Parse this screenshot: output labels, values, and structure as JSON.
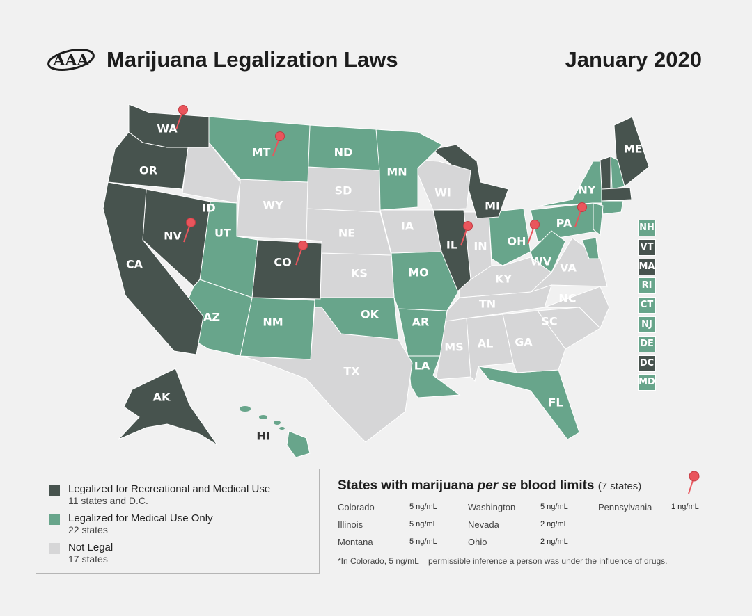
{
  "header": {
    "title": "Marijuana Legalization Laws",
    "date": "January 2020",
    "logo_text": "AAA"
  },
  "colors": {
    "recreational": "#47534e",
    "medical": "#68a58b",
    "not_legal": "#d6d6d7",
    "pin": "#e9555c",
    "background": "#f1f1f1"
  },
  "states": [
    {
      "abbr": "WA",
      "status": "recreational"
    },
    {
      "abbr": "OR",
      "status": "recreational"
    },
    {
      "abbr": "CA",
      "status": "recreational"
    },
    {
      "abbr": "NV",
      "status": "recreational"
    },
    {
      "abbr": "ID",
      "status": "not_legal"
    },
    {
      "abbr": "MT",
      "status": "medical"
    },
    {
      "abbr": "WY",
      "status": "not_legal"
    },
    {
      "abbr": "UT",
      "status": "medical"
    },
    {
      "abbr": "CO",
      "status": "recreational"
    },
    {
      "abbr": "AZ",
      "status": "medical"
    },
    {
      "abbr": "NM",
      "status": "medical"
    },
    {
      "abbr": "ND",
      "status": "medical"
    },
    {
      "abbr": "SD",
      "status": "not_legal"
    },
    {
      "abbr": "NE",
      "status": "not_legal"
    },
    {
      "abbr": "KS",
      "status": "not_legal"
    },
    {
      "abbr": "OK",
      "status": "medical"
    },
    {
      "abbr": "TX",
      "status": "not_legal"
    },
    {
      "abbr": "MN",
      "status": "medical"
    },
    {
      "abbr": "IA",
      "status": "not_legal"
    },
    {
      "abbr": "MO",
      "status": "medical"
    },
    {
      "abbr": "AR",
      "status": "medical"
    },
    {
      "abbr": "LA",
      "status": "medical"
    },
    {
      "abbr": "WI",
      "status": "not_legal"
    },
    {
      "abbr": "IL",
      "status": "recreational"
    },
    {
      "abbr": "MI",
      "status": "recreational"
    },
    {
      "abbr": "IN",
      "status": "not_legal"
    },
    {
      "abbr": "OH",
      "status": "medical"
    },
    {
      "abbr": "KY",
      "status": "not_legal"
    },
    {
      "abbr": "TN",
      "status": "not_legal"
    },
    {
      "abbr": "MS",
      "status": "not_legal"
    },
    {
      "abbr": "AL",
      "status": "not_legal"
    },
    {
      "abbr": "GA",
      "status": "not_legal"
    },
    {
      "abbr": "FL",
      "status": "medical"
    },
    {
      "abbr": "SC",
      "status": "not_legal"
    },
    {
      "abbr": "NC",
      "status": "not_legal"
    },
    {
      "abbr": "VA",
      "status": "not_legal"
    },
    {
      "abbr": "WV",
      "status": "medical"
    },
    {
      "abbr": "PA",
      "status": "medical"
    },
    {
      "abbr": "NY",
      "status": "medical"
    },
    {
      "abbr": "ME",
      "status": "recreational"
    },
    {
      "abbr": "AK",
      "status": "recreational"
    },
    {
      "abbr": "HI",
      "status": "medical"
    }
  ],
  "small_states": [
    {
      "abbr": "NH",
      "status": "medical"
    },
    {
      "abbr": "VT",
      "status": "recreational"
    },
    {
      "abbr": "MA",
      "status": "recreational"
    },
    {
      "abbr": "RI",
      "status": "medical"
    },
    {
      "abbr": "CT",
      "status": "medical"
    },
    {
      "abbr": "NJ",
      "status": "medical"
    },
    {
      "abbr": "DE",
      "status": "medical"
    },
    {
      "abbr": "DC",
      "status": "recreational"
    },
    {
      "abbr": "MD",
      "status": "medical"
    }
  ],
  "pins": [
    "WA",
    "MT",
    "NV",
    "CO",
    "IL",
    "OH",
    "PA"
  ],
  "legend": [
    {
      "status": "recreational",
      "title": "Legalized for Recreational and Medical Use",
      "sub": "11 states and D.C."
    },
    {
      "status": "medical",
      "title": "Legalized for Medical Use Only",
      "sub": "22 states"
    },
    {
      "status": "not_legal",
      "title": "Not Legal",
      "sub": "17 states"
    }
  ],
  "blood_limits": {
    "title_pre": "States with marijuana ",
    "title_em": "per se",
    "title_post": " blood limits",
    "count": "(7 states)",
    "rows": [
      {
        "state": "Colorado",
        "limit": "5 ng/mL"
      },
      {
        "state": "Illinois",
        "limit": "5 ng/mL"
      },
      {
        "state": "Montana",
        "limit": "5 ng/mL"
      },
      {
        "state": "Washington",
        "limit": "5 ng/mL"
      },
      {
        "state": "Nevada",
        "limit": "2 ng/mL"
      },
      {
        "state": "Ohio",
        "limit": "2 ng/mL"
      },
      {
        "state": "Pennsylvania",
        "limit": "1 ng/mL"
      }
    ],
    "note": "*In Colorado, 5 ng/mL = permissible inference a person was under the influence of drugs."
  }
}
